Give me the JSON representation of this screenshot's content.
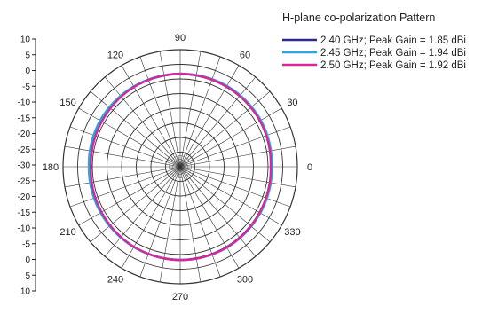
{
  "chart_data": {
    "type": "polar-line",
    "title": "H-plane co-polarization Pattern",
    "radial_ticks": [
      "10",
      "5",
      "0",
      "-5",
      "-10",
      "-15",
      "-20",
      "-25",
      "-30",
      "-25",
      "-20",
      "-15",
      "-10",
      "-5",
      "0",
      "5",
      "10"
    ],
    "radial_range": [
      -30,
      10
    ],
    "angle_labels": [
      "0",
      "30",
      "60",
      "90",
      "120",
      "150",
      "180",
      "210",
      "240",
      "270",
      "300",
      "330"
    ],
    "angle_label_values": [
      0,
      30,
      60,
      90,
      120,
      150,
      180,
      210,
      240,
      270,
      300,
      330
    ],
    "grid": true,
    "legend_position": "top-right",
    "colors": {
      "2.40": "#2b2b8f",
      "2.45": "#2aa8dc",
      "2.50": "#d6289a"
    },
    "series": [
      {
        "name": "2.40 GHz; Peak Gain = 1.85 dBi",
        "color": "#2b2b8f",
        "angles": [
          0,
          30,
          60,
          90,
          120,
          150,
          180,
          210,
          240,
          270,
          300,
          330,
          360
        ],
        "values": [
          1.0,
          1.5,
          1.6,
          1.7,
          1.5,
          1.0,
          0.6,
          1.1,
          1.6,
          1.8,
          1.7,
          1.3,
          1.0
        ]
      },
      {
        "name": "2.45 GHz; Peak Gain = 1.94 dBi",
        "color": "#2aa8dc",
        "angles": [
          0,
          30,
          60,
          90,
          120,
          150,
          180,
          210,
          240,
          270,
          300,
          330,
          360
        ],
        "values": [
          1.3,
          1.8,
          1.9,
          1.8,
          1.7,
          1.6,
          1.2,
          1.4,
          1.7,
          1.9,
          1.9,
          1.6,
          1.3
        ]
      },
      {
        "name": "2.50 GHz; Peak Gain = 1.92 dBi",
        "color": "#d6289a",
        "angles": [
          0,
          30,
          60,
          90,
          120,
          150,
          180,
          210,
          240,
          270,
          300,
          330,
          360
        ],
        "values": [
          0.9,
          1.4,
          1.6,
          1.8,
          1.5,
          0.9,
          0.5,
          1.0,
          1.6,
          1.9,
          1.8,
          1.3,
          0.9
        ]
      }
    ]
  }
}
